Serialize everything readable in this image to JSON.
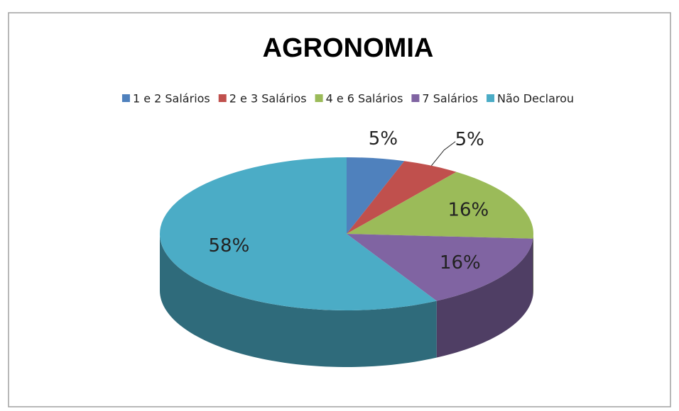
{
  "chart_data": {
    "type": "pie",
    "title": "AGRONOMIA",
    "categories": [
      "1 e 2 Salários",
      "2 e 3 Salários",
      "4 e 6 Salários",
      "7 Salários",
      "Não Declarou"
    ],
    "values": [
      5,
      5,
      16,
      16,
      58
    ],
    "value_labels": [
      "5%",
      "5%",
      "16%",
      "16%",
      "58%"
    ],
    "colors": [
      "#4f81bd",
      "#c0504d",
      "#9bbb59",
      "#8064a2",
      "#4bacc6"
    ],
    "legend": "top"
  }
}
